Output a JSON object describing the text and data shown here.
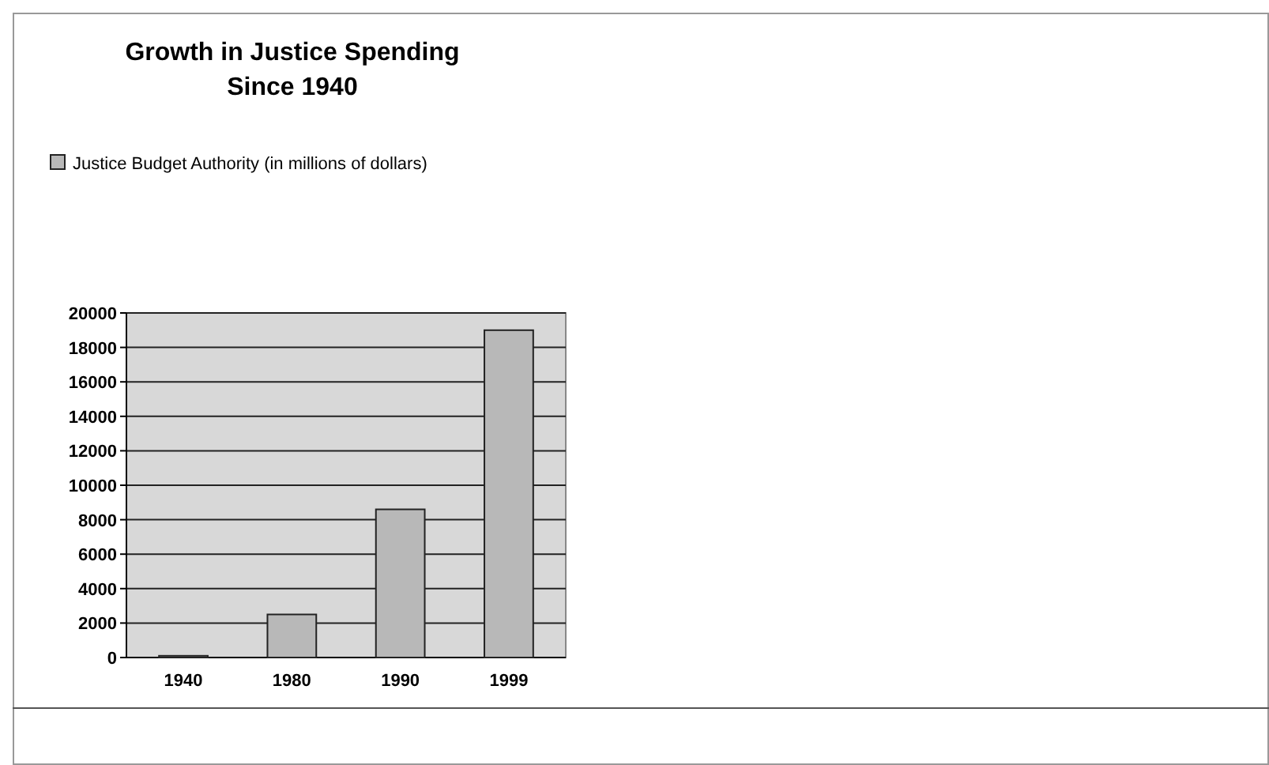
{
  "chart_data": {
    "type": "bar",
    "title": "Growth in Justice Spending\nSince 1940",
    "categories": [
      "1940",
      "1980",
      "1990",
      "1999"
    ],
    "series": [
      {
        "name": "Justice Budget Authority (in millions of dollars)",
        "color": "#b8b8b8",
        "values": [
          100,
          2500,
          8600,
          19000
        ]
      }
    ],
    "ylim": [
      0,
      20000
    ],
    "yticks": [
      0,
      2000,
      4000,
      6000,
      8000,
      10000,
      12000,
      14000,
      16000,
      18000,
      20000
    ],
    "grid": "y",
    "legend": "top"
  }
}
